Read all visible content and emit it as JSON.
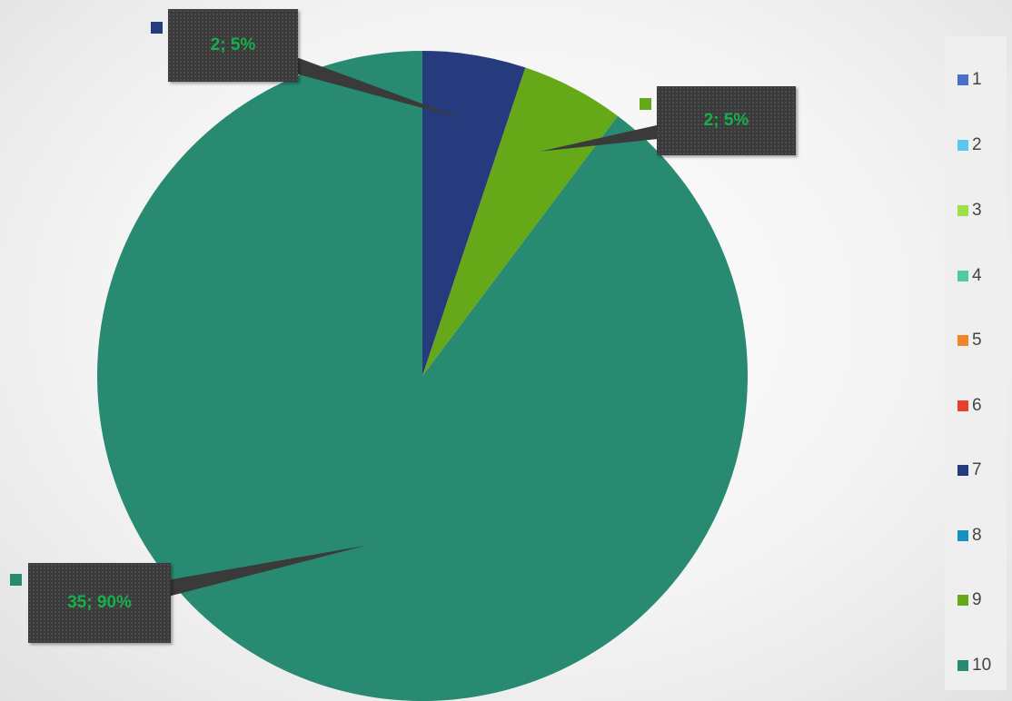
{
  "chart_data": {
    "type": "pie",
    "slices": [
      {
        "category": "1",
        "value": 0,
        "color": "#4a6fc9"
      },
      {
        "category": "2",
        "value": 0,
        "color": "#5bc8ee"
      },
      {
        "category": "3",
        "value": 0,
        "color": "#9ee04a"
      },
      {
        "category": "4",
        "value": 0,
        "color": "#4ccba6"
      },
      {
        "category": "5",
        "value": 0,
        "color": "#f0862a"
      },
      {
        "category": "6",
        "value": 0,
        "color": "#e8402a"
      },
      {
        "category": "7",
        "value": 2,
        "color": "#263b7e"
      },
      {
        "category": "8",
        "value": 0,
        "color": "#1590c0"
      },
      {
        "category": "9",
        "value": 2,
        "color": "#65a919"
      },
      {
        "category": "10",
        "value": 35,
        "color": "#288a70"
      }
    ],
    "data_labels": [
      {
        "category": "7",
        "text": "2; 5%"
      },
      {
        "category": "9",
        "text": "2; 5%"
      },
      {
        "category": "10",
        "text": "35; 90%"
      }
    ],
    "legend": {
      "position": "right",
      "entries": [
        "1",
        "2",
        "3",
        "4",
        "5",
        "6",
        "7",
        "8",
        "9",
        "10"
      ]
    }
  },
  "colors": {
    "callout_background": "#3a3a3a",
    "callout_text": "#16b04a"
  }
}
